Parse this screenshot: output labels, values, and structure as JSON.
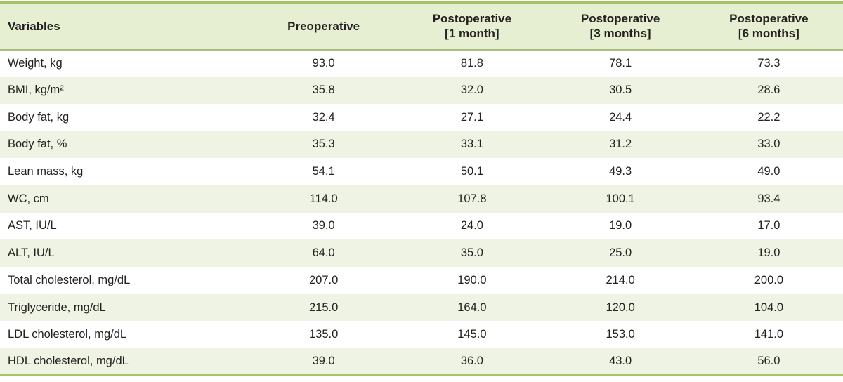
{
  "colors": {
    "border_green": "#a6c368",
    "header_separator_green": "#a9be79",
    "header_bg": "#e7efd2",
    "stripe_bg": "#eff3e3",
    "text": "#242120",
    "row_bg": "#ffffff"
  },
  "table": {
    "columns": [
      {
        "title": "Variables",
        "subtitle": ""
      },
      {
        "title": "Preoperative",
        "subtitle": ""
      },
      {
        "title": "Postoperative",
        "subtitle": "[1 month]"
      },
      {
        "title": "Postoperative",
        "subtitle": "[3 months]"
      },
      {
        "title": "Postoperative",
        "subtitle": "[6 months]"
      }
    ],
    "rows": [
      {
        "variable": "Weight, kg",
        "values": [
          "93.0",
          "81.8",
          "78.1",
          "73.3"
        ]
      },
      {
        "variable": "BMI, kg/m²",
        "values": [
          "35.8",
          "32.0",
          "30.5",
          "28.6"
        ]
      },
      {
        "variable": "Body fat, kg",
        "values": [
          "32.4",
          "27.1",
          "24.4",
          "22.2"
        ]
      },
      {
        "variable": "Body fat, %",
        "values": [
          "35.3",
          "33.1",
          "31.2",
          "33.0"
        ]
      },
      {
        "variable": "Lean mass, kg",
        "values": [
          "54.1",
          "50.1",
          "49.3",
          "49.0"
        ]
      },
      {
        "variable": "WC, cm",
        "values": [
          "114.0",
          "107.8",
          "100.1",
          "93.4"
        ]
      },
      {
        "variable": "AST, IU/L",
        "values": [
          "39.0",
          "24.0",
          "19.0",
          "17.0"
        ]
      },
      {
        "variable": "ALT, IU/L",
        "values": [
          "64.0",
          "35.0",
          "25.0",
          "19.0"
        ]
      },
      {
        "variable": "Total cholesterol, mg/dL",
        "values": [
          "207.0",
          "190.0",
          "214.0",
          "200.0"
        ]
      },
      {
        "variable": "Triglyceride, mg/dL",
        "values": [
          "215.0",
          "164.0",
          "120.0",
          "104.0"
        ]
      },
      {
        "variable": "LDL cholesterol, mg/dL",
        "values": [
          "135.0",
          "145.0",
          "153.0",
          "141.0"
        ]
      },
      {
        "variable": "HDL cholesterol, mg/dL",
        "values": [
          "39.0",
          "36.0",
          "43.0",
          "56.0"
        ]
      }
    ]
  }
}
